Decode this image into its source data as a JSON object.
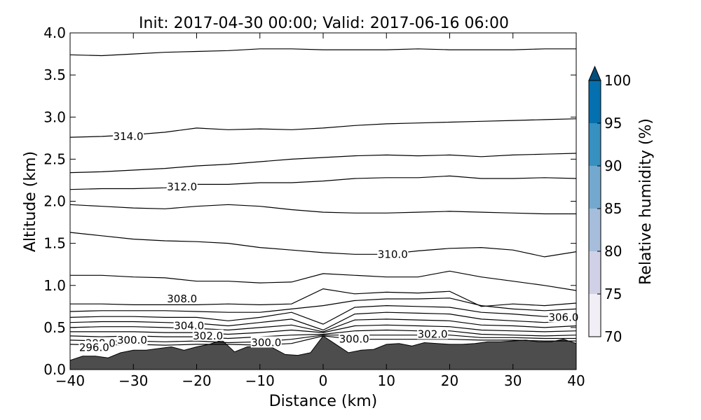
{
  "chart_data": {
    "type": "contour",
    "title": "Init: 2017-04-30 00:00; Valid: 2017-06-16 06:00",
    "xlabel": "Distance (km)",
    "ylabel": "Altitude (km)",
    "xlim": [
      -40,
      40
    ],
    "ylim": [
      0.0,
      4.0
    ],
    "x_ticks": [
      "−40",
      "−30",
      "−20",
      "−10",
      "0",
      "10",
      "20",
      "30",
      "40"
    ],
    "y_ticks": [
      "0.0",
      "0.5",
      "1.0",
      "1.5",
      "2.0",
      "2.5",
      "3.0",
      "3.5",
      "4.0"
    ],
    "colorbar": {
      "label": "Relative humidity (%)",
      "ticks": [
        "70",
        "75",
        "80",
        "85",
        "90",
        "95",
        "100"
      ],
      "extend": "max",
      "colors": [
        "#f1eef6",
        "#d0d1e6",
        "#a6bddb",
        "#74a9cf",
        "#3690c0",
        "#0570b0",
        "#045a8d",
        "#034e7b"
      ]
    },
    "contour_labels": [
      {
        "text": "314.0",
        "x": -30.8,
        "y": 2.77
      },
      {
        "text": "312.0",
        "x": -22.3,
        "y": 2.17
      },
      {
        "text": "310.0",
        "x": 11.0,
        "y": 1.37
      },
      {
        "text": "308.0",
        "x": -22.3,
        "y": 0.84
      },
      {
        "text": "306.0",
        "x": 38.0,
        "y": 0.62
      },
      {
        "text": "304.0",
        "x": -21.2,
        "y": 0.52
      },
      {
        "text": "302.0",
        "x": -18.2,
        "y": 0.4
      },
      {
        "text": "302.0",
        "x": 17.3,
        "y": 0.42
      },
      {
        "text": "300.0",
        "x": -30.2,
        "y": 0.35
      },
      {
        "text": "300.0",
        "x": -9.0,
        "y": 0.32
      },
      {
        "text": "300.0",
        "x": 4.9,
        "y": 0.36
      },
      {
        "text": "298.0",
        "x": -35.2,
        "y": 0.31
      },
      {
        "text": "296.0",
        "x": -36.2,
        "y": 0.26
      }
    ],
    "isentropes": [
      {
        "x": [
          -40,
          -35,
          -30,
          -25,
          -20,
          -15,
          -10,
          -5,
          0,
          5,
          10,
          15,
          20,
          25,
          30,
          35,
          40
        ],
        "y": [
          3.74,
          3.73,
          3.75,
          3.77,
          3.78,
          3.79,
          3.81,
          3.81,
          3.8,
          3.8,
          3.8,
          3.81,
          3.8,
          3.8,
          3.8,
          3.81,
          3.81
        ]
      },
      {
        "x": [
          -40,
          -35,
          -30,
          -25,
          -20,
          -15,
          -10,
          -5,
          0,
          5,
          10,
          15,
          20,
          25,
          30,
          35,
          40
        ],
        "y": [
          2.76,
          2.77,
          2.79,
          2.82,
          2.87,
          2.85,
          2.86,
          2.85,
          2.87,
          2.9,
          2.92,
          2.93,
          2.94,
          2.95,
          2.96,
          2.97,
          2.98
        ]
      },
      {
        "x": [
          -40,
          -35,
          -30,
          -25,
          -20,
          -15,
          -10,
          -5,
          0,
          5,
          10,
          15,
          20,
          25,
          30,
          35,
          40
        ],
        "y": [
          2.34,
          2.35,
          2.37,
          2.39,
          2.42,
          2.44,
          2.47,
          2.5,
          2.52,
          2.54,
          2.55,
          2.54,
          2.55,
          2.53,
          2.55,
          2.56,
          2.57
        ]
      },
      {
        "x": [
          -40,
          -35,
          -30,
          -25,
          -20,
          -15,
          -10,
          -5,
          0,
          5,
          10,
          15,
          20,
          25,
          30,
          35,
          40
        ],
        "y": [
          2.14,
          2.15,
          2.15,
          2.16,
          2.2,
          2.2,
          2.22,
          2.22,
          2.24,
          2.27,
          2.28,
          2.28,
          2.3,
          2.27,
          2.27,
          2.28,
          2.27
        ]
      },
      {
        "x": [
          -40,
          -35,
          -30,
          -25,
          -20,
          -15,
          -10,
          -5,
          0,
          5,
          10,
          15,
          20,
          25,
          30,
          35,
          40
        ],
        "y": [
          1.96,
          1.94,
          1.92,
          1.91,
          1.94,
          1.96,
          1.94,
          1.9,
          1.87,
          1.86,
          1.86,
          1.87,
          1.88,
          1.87,
          1.86,
          1.85,
          1.85
        ]
      },
      {
        "x": [
          -40,
          -35,
          -30,
          -25,
          -20,
          -15,
          -10,
          -5,
          0,
          5,
          10,
          15,
          20,
          25,
          30,
          35,
          40
        ],
        "y": [
          1.63,
          1.59,
          1.55,
          1.53,
          1.52,
          1.5,
          1.45,
          1.42,
          1.39,
          1.37,
          1.37,
          1.41,
          1.44,
          1.45,
          1.42,
          1.34,
          1.4
        ]
      },
      {
        "x": [
          -40,
          -35,
          -30,
          -25,
          -20,
          -15,
          -10,
          -5,
          0,
          5,
          10,
          15,
          20,
          25,
          30,
          35,
          40
        ],
        "y": [
          1.12,
          1.12,
          1.1,
          1.09,
          1.05,
          1.05,
          1.03,
          1.04,
          1.14,
          1.12,
          1.1,
          1.1,
          1.17,
          1.1,
          1.05,
          1.0,
          0.94
        ]
      },
      {
        "x": [
          -40,
          -35,
          -30,
          -25,
          -20,
          -15,
          -10,
          -5,
          0,
          5,
          10,
          15,
          20,
          25,
          30,
          35,
          40
        ],
        "y": [
          0.78,
          0.78,
          0.77,
          0.77,
          0.77,
          0.78,
          0.77,
          0.78,
          0.96,
          0.9,
          0.92,
          0.91,
          0.93,
          0.75,
          0.78,
          0.76,
          0.79
        ]
      },
      {
        "x": [
          -40,
          -35,
          -30,
          -25,
          -20,
          -15,
          -10,
          -5,
          0,
          5,
          10,
          15,
          20,
          25,
          30,
          35,
          40
        ],
        "y": [
          0.69,
          0.7,
          0.7,
          0.7,
          0.69,
          0.68,
          0.68,
          0.72,
          0.76,
          0.82,
          0.84,
          0.84,
          0.85,
          0.76,
          0.72,
          0.7,
          0.72
        ]
      },
      {
        "x": [
          -40,
          -35,
          -30,
          -25,
          -20,
          -15,
          -10,
          -5,
          0,
          5,
          10,
          15,
          20,
          25,
          30,
          35,
          40
        ],
        "y": [
          0.62,
          0.63,
          0.63,
          0.62,
          0.62,
          0.58,
          0.62,
          0.68,
          0.54,
          0.74,
          0.76,
          0.75,
          0.74,
          0.68,
          0.66,
          0.63,
          0.65
        ]
      },
      {
        "x": [
          -40,
          -35,
          -30,
          -25,
          -20,
          -15,
          -10,
          -5,
          0,
          5,
          10,
          15,
          20,
          25,
          30,
          35,
          40
        ],
        "y": [
          0.56,
          0.57,
          0.57,
          0.56,
          0.55,
          0.52,
          0.56,
          0.6,
          0.47,
          0.66,
          0.68,
          0.67,
          0.66,
          0.6,
          0.58,
          0.56,
          0.58
        ]
      },
      {
        "x": [
          -40,
          -35,
          -30,
          -25,
          -20,
          -15,
          -10,
          -5,
          0,
          5,
          10,
          15,
          20,
          25,
          30,
          35,
          40
        ],
        "y": [
          0.5,
          0.51,
          0.51,
          0.5,
          0.49,
          0.47,
          0.5,
          0.53,
          0.45,
          0.59,
          0.6,
          0.59,
          0.58,
          0.53,
          0.52,
          0.5,
          0.52
        ]
      },
      {
        "x": [
          -40,
          -35,
          -30,
          -25,
          -20,
          -15,
          -10,
          -5,
          0,
          5,
          10,
          15,
          20,
          25,
          30,
          35,
          40
        ],
        "y": [
          0.45,
          0.45,
          0.45,
          0.44,
          0.44,
          0.42,
          0.44,
          0.47,
          0.44,
          0.52,
          0.53,
          0.52,
          0.51,
          0.47,
          0.46,
          0.45,
          0.46
        ]
      },
      {
        "x": [
          -40,
          -35,
          -30,
          -25,
          -20,
          -15,
          -10,
          -5,
          0,
          5,
          10,
          15,
          20,
          25,
          30,
          35,
          40
        ],
        "y": [
          0.4,
          0.39,
          0.4,
          0.39,
          0.39,
          0.37,
          0.39,
          0.41,
          0.42,
          0.46,
          0.47,
          0.46,
          0.46,
          0.42,
          0.41,
          0.4,
          0.41
        ]
      },
      {
        "x": [
          -40,
          -35,
          -30,
          -25,
          -20,
          -15,
          -10,
          -5,
          0,
          5,
          10,
          15,
          20,
          25,
          30,
          35,
          40
        ],
        "y": [
          0.35,
          0.34,
          0.34,
          0.33,
          0.34,
          0.32,
          0.33,
          0.36,
          0.41,
          0.41,
          0.41,
          0.41,
          0.41,
          0.38,
          0.38,
          0.37,
          0.37
        ]
      },
      {
        "x": [
          -40,
          -35,
          -30,
          -25,
          -20,
          -15,
          -10,
          -5,
          0,
          5,
          10,
          15,
          20,
          25,
          30,
          35,
          40
        ],
        "y": [
          0.3,
          0.29,
          0.3,
          0.29,
          0.3,
          0.3,
          0.29,
          0.31,
          0.4,
          0.36,
          0.36,
          0.36,
          0.36,
          0.35,
          0.35,
          0.34,
          0.34
        ]
      }
    ],
    "terrain": {
      "x": [
        -40,
        -38,
        -36,
        -34,
        -32,
        -30,
        -28,
        -26,
        -24,
        -22,
        -20,
        -18,
        -16,
        -14,
        -12,
        -10,
        -8,
        -6,
        -4,
        -2,
        0,
        2,
        4,
        6,
        8,
        10,
        12,
        14,
        16,
        18,
        20,
        22,
        24,
        26,
        28,
        30,
        32,
        34,
        36,
        38,
        40
      ],
      "y": [
        0.11,
        0.16,
        0.16,
        0.14,
        0.2,
        0.23,
        0.23,
        0.25,
        0.27,
        0.23,
        0.27,
        0.3,
        0.35,
        0.21,
        0.27,
        0.28,
        0.26,
        0.18,
        0.17,
        0.2,
        0.4,
        0.3,
        0.2,
        0.23,
        0.24,
        0.3,
        0.31,
        0.28,
        0.32,
        0.31,
        0.3,
        0.3,
        0.31,
        0.33,
        0.33,
        0.34,
        0.35,
        0.33,
        0.33,
        0.36,
        0.31
      ]
    },
    "terrain_color": "#4d4d4d",
    "grid": false
  }
}
